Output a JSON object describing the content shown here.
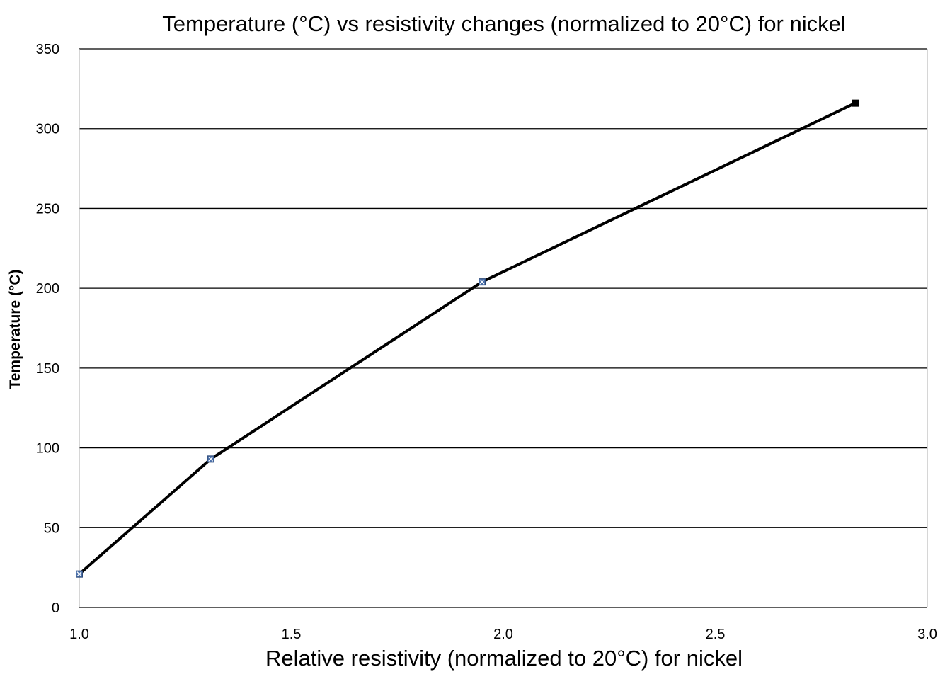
{
  "chart_data": {
    "type": "line",
    "title": "Temperature (°C) vs resistivity changes (normalized to 20°C) for nickel",
    "xlabel": "Relative resistivity (normalized to 20°C) for nickel",
    "ylabel": "Temperature (°C)",
    "xlim": [
      1.0,
      3.0
    ],
    "ylim": [
      0,
      350
    ],
    "xticks": [
      "1.0",
      "1.5",
      "2.0",
      "2.5",
      "3.0"
    ],
    "yticks": [
      "0",
      "50",
      "100",
      "150",
      "200",
      "250",
      "300",
      "350"
    ],
    "grid": "horizontal",
    "legend": "none",
    "series": [
      {
        "x": [
          1.0,
          1.31,
          1.95,
          2.83
        ],
        "y": [
          21,
          93,
          204,
          316
        ]
      }
    ],
    "colors": {
      "line": "#000000",
      "grid": "#000000",
      "marker": "#4a6fa8",
      "axis": "#bfbfbf"
    }
  }
}
